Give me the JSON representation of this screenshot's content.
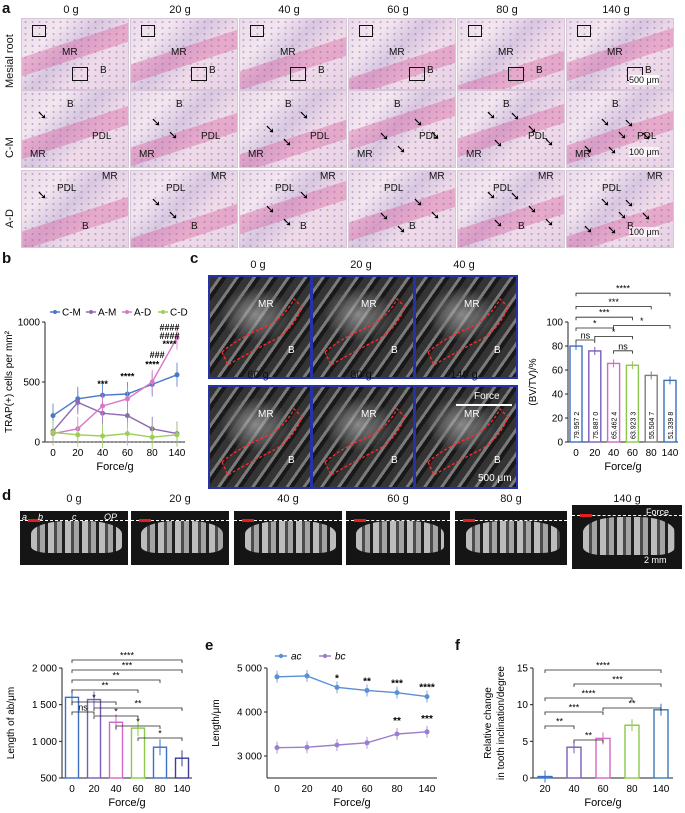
{
  "panels": {
    "a": "a",
    "b": "b",
    "c": "c",
    "d": "d",
    "e": "e",
    "f": "f"
  },
  "panel_a": {
    "columns": [
      "0 g",
      "20 g",
      "40 g",
      "60 g",
      "80 g",
      "140 g"
    ],
    "rows": [
      "Mesial root",
      "C-M",
      "A-D"
    ],
    "labels": {
      "mr": "MR",
      "b": "B",
      "pdl": "PDL"
    },
    "scale_top": "500 μm",
    "scale_bottom": "100 μm"
  },
  "panel_c_images": {
    "columns": [
      "0 g",
      "20 g",
      "40 g",
      "60 g",
      "80 g",
      "140 g"
    ],
    "labels": {
      "mr": "MR",
      "b": "B",
      "force": "Force"
    },
    "scale": "500 μm"
  },
  "panel_d_images": {
    "columns": [
      "0 g",
      "20 g",
      "40 g",
      "60 g",
      "80 g",
      "140 g"
    ],
    "points": {
      "a": "a",
      "b": "b",
      "c": "c",
      "op": "OP"
    },
    "force": "Force",
    "scale": "2 mm"
  },
  "chart_data": [
    {
      "id": "b",
      "type": "line",
      "x": [
        0,
        20,
        40,
        60,
        80,
        140
      ],
      "xlabel": "Force/g",
      "ylabel": "TRAP(+) cells per mm²",
      "ylim": [
        0,
        1000
      ],
      "yticks": [
        0,
        500,
        1000
      ],
      "xticks": [
        "0",
        "20",
        "40",
        "60",
        "80",
        "140"
      ],
      "series": [
        {
          "name": "C-M",
          "color": "#4a78c8",
          "values": [
            220,
            360,
            390,
            400,
            480,
            560
          ]
        },
        {
          "name": "A-M",
          "color": "#8c6bb5",
          "values": [
            90,
            330,
            240,
            220,
            110,
            70
          ]
        },
        {
          "name": "A-D",
          "color": "#d878c8",
          "values": [
            70,
            110,
            300,
            360,
            500,
            870
          ]
        },
        {
          "name": "C-D",
          "color": "#9ccf5a",
          "values": [
            80,
            60,
            50,
            70,
            40,
            60
          ]
        }
      ],
      "annotations": [
        "***",
        "****",
        "####",
        "****",
        "###",
        "####",
        "****"
      ]
    },
    {
      "id": "c",
      "type": "bar",
      "categories": [
        "0",
        "20",
        "40",
        "60",
        "80",
        "140"
      ],
      "values": [
        79.9572,
        75.887,
        65.4624,
        63.9233,
        55.5047,
        51.3398
      ],
      "value_labels": [
        "79.957 2",
        "75.887 0",
        "65.462 4",
        "63.923 3",
        "55.504 7",
        "51.339 8"
      ],
      "colors": [
        "#3d6fc4",
        "#7a5db8",
        "#d567c7",
        "#8cc84b",
        "#7f7f7f",
        "#3a6eb8"
      ],
      "xlabel": "Force/g",
      "ylabel": "(BV/TV)/%",
      "ylim": [
        0,
        100
      ],
      "yticks": [
        0,
        20,
        40,
        60,
        80,
        100
      ],
      "significance": [
        "ns",
        "ns",
        "*",
        "*",
        "***",
        "*",
        "***",
        "****"
      ]
    },
    {
      "id": "d",
      "type": "bar",
      "categories": [
        "0",
        "20",
        "40",
        "60",
        "80",
        "140"
      ],
      "values": [
        1600,
        1570,
        1260,
        1180,
        920,
        770
      ],
      "colors": [
        "#3d6fc4",
        "#7a5db8",
        "#d567c7",
        "#8cc84b",
        "#3d6fc4",
        "#3d3d9a"
      ],
      "xlabel": "Force/g",
      "ylabel": "Length of ab/μm",
      "ylim": [
        500,
        2000
      ],
      "yticks": [
        "500",
        "1 000",
        "1 500",
        "2 000"
      ],
      "significance": [
        "ns",
        "*",
        "*",
        "**",
        "*",
        "**",
        "*",
        "**",
        "***",
        "****"
      ]
    },
    {
      "id": "e",
      "type": "line",
      "x": [
        0,
        20,
        40,
        60,
        80,
        140
      ],
      "xticks": [
        "0",
        "20",
        "40",
        "60",
        "80",
        "140"
      ],
      "xlabel": "Force/g",
      "ylabel": "Length/μm",
      "ylim": [
        2500,
        5000
      ],
      "yticks": [
        "3 000",
        "4 000",
        "5 000"
      ],
      "series": [
        {
          "name": "ac",
          "color": "#5b8fd6",
          "values": [
            4800,
            4820,
            4560,
            4490,
            4440,
            4350
          ]
        },
        {
          "name": "bc",
          "color": "#9b7fcf",
          "values": [
            3190,
            3200,
            3250,
            3300,
            3500,
            3550
          ]
        }
      ],
      "annotations": [
        "*",
        "**",
        "***",
        "****",
        "**",
        "***"
      ]
    },
    {
      "id": "f",
      "type": "bar",
      "categories": [
        "20",
        "40",
        "60",
        "80",
        "140"
      ],
      "values": [
        0.2,
        4.2,
        5.4,
        7.2,
        9.3
      ],
      "colors": [
        "#3d6fc4",
        "#7a5db8",
        "#d567c7",
        "#8cc84b",
        "#3a7ab8"
      ],
      "xlabel": "Force/g",
      "ylabel": "Relative change in tooth inclination/degree",
      "ylabel_lines": [
        "Relative change",
        "in tooth inclination/degree"
      ],
      "ylim": [
        0,
        15
      ],
      "yticks": [
        "0",
        "5",
        "10",
        "15"
      ],
      "significance": [
        "**",
        "**",
        "**",
        "***",
        "****",
        "***",
        "****"
      ]
    }
  ]
}
